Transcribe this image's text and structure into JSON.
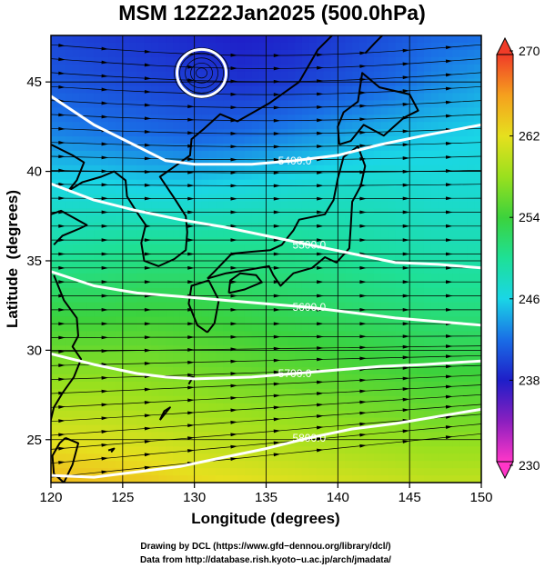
{
  "chart_data": {
    "type": "heatmap",
    "title": "MSM 12Z22Jan2025 (500.0hPa)",
    "xlabel": "Longitude (degrees)",
    "ylabel": "Latitude  (degrees)",
    "xlim": [
      120,
      150
    ],
    "ylim": [
      22.6,
      47.6
    ],
    "x_ticks": [
      "120",
      "125",
      "130",
      "135",
      "140",
      "145",
      "150"
    ],
    "y_ticks": [
      "25",
      "30",
      "35",
      "40",
      "45"
    ],
    "colorbar": {
      "range": [
        230,
        270
      ],
      "ticks": [
        "230",
        "238",
        "246",
        "254",
        "262",
        "270"
      ],
      "stops": [
        {
          "value": 230,
          "color": "#ff36c8"
        },
        {
          "value": 234,
          "color": "#8a1fbf"
        },
        {
          "value": 238,
          "color": "#1e1ec8"
        },
        {
          "value": 242,
          "color": "#1a6ee6"
        },
        {
          "value": 246,
          "color": "#1ad6e6"
        },
        {
          "value": 250,
          "color": "#1ee096"
        },
        {
          "value": 254,
          "color": "#3cd23c"
        },
        {
          "value": 258,
          "color": "#9ae01e"
        },
        {
          "value": 262,
          "color": "#e6e01e"
        },
        {
          "value": 266,
          "color": "#f5a01e"
        },
        {
          "value": 270,
          "color": "#f03c28"
        }
      ]
    },
    "temperature_field": [
      {
        "lat": 47.6,
        "values": [
          240,
          239.5,
          239,
          238.5,
          238,
          238.5,
          239.5,
          240.5,
          241.5,
          242
        ]
      },
      {
        "lat": 45,
        "values": [
          241,
          240.5,
          240,
          239.5,
          239,
          239.5,
          240.5,
          241.5,
          243,
          244
        ]
      },
      {
        "lat": 42,
        "values": [
          243,
          242.5,
          242,
          241.5,
          242,
          243,
          244,
          245,
          245.5,
          246
        ]
      },
      {
        "lat": 39,
        "values": [
          246.5,
          246.5,
          246,
          246,
          246.5,
          247,
          247.5,
          247.5,
          247,
          247
        ]
      },
      {
        "lat": 36,
        "values": [
          249,
          249.5,
          250,
          250,
          250,
          250,
          249.5,
          249,
          248.5,
          248.5
        ]
      },
      {
        "lat": 33,
        "values": [
          252.5,
          252.5,
          253,
          253,
          252.5,
          252,
          251.5,
          251,
          250.5,
          250.5
        ]
      },
      {
        "lat": 30,
        "values": [
          256,
          256,
          256,
          255.5,
          255,
          254.5,
          254,
          253.5,
          253,
          253
        ]
      },
      {
        "lat": 27,
        "values": [
          259,
          259,
          258.5,
          258,
          257.5,
          257,
          256.5,
          256,
          255.5,
          255.5
        ]
      },
      {
        "lat": 24,
        "values": [
          263,
          262.5,
          262,
          261,
          260.5,
          260,
          259.5,
          259,
          258.5,
          258.5
        ]
      },
      {
        "lat": 22.6,
        "values": [
          264.5,
          264,
          263.5,
          262.5,
          262,
          261.5,
          261,
          260.5,
          260,
          260
        ]
      }
    ],
    "contours": [
      {
        "label": "5400.0",
        "points": [
          [
            120,
            44.2
          ],
          [
            123,
            42.6
          ],
          [
            126,
            41.4
          ],
          [
            128,
            40.6
          ],
          [
            130,
            40.4
          ],
          [
            134,
            40.4
          ],
          [
            137,
            40.6
          ],
          [
            140,
            40.9
          ],
          [
            143,
            41.5
          ],
          [
            146,
            42.0
          ],
          [
            150,
            42.6
          ]
        ]
      },
      {
        "label": "5500.0",
        "points": [
          [
            120,
            39.3
          ],
          [
            123,
            38.4
          ],
          [
            126,
            37.8
          ],
          [
            129,
            37.3
          ],
          [
            132,
            36.9
          ],
          [
            135,
            36.4
          ],
          [
            138,
            35.9
          ],
          [
            141,
            35.4
          ],
          [
            144,
            34.9
          ],
          [
            147,
            34.8
          ],
          [
            150,
            34.6
          ]
        ]
      },
      {
        "label": "5600.0",
        "points": [
          [
            120,
            34.4
          ],
          [
            123,
            33.6
          ],
          [
            126,
            33.2
          ],
          [
            129,
            33.0
          ],
          [
            132,
            32.8
          ],
          [
            135,
            32.6
          ],
          [
            138,
            32.4
          ],
          [
            141,
            32.1
          ],
          [
            144,
            31.8
          ],
          [
            147,
            31.6
          ],
          [
            150,
            31.4
          ]
        ]
      },
      {
        "label": "5700.0",
        "points": [
          [
            120,
            29.8
          ],
          [
            123,
            29.2
          ],
          [
            126,
            28.7
          ],
          [
            128,
            28.5
          ],
          [
            130,
            28.4
          ],
          [
            134,
            28.5
          ],
          [
            137,
            28.7
          ],
          [
            140,
            28.9
          ],
          [
            143,
            29.1
          ],
          [
            146,
            29.2
          ],
          [
            150,
            29.4
          ]
        ]
      },
      {
        "label": "5800.0",
        "points": [
          [
            120,
            23.0
          ],
          [
            123,
            22.9
          ],
          [
            126,
            23.2
          ],
          [
            129,
            23.5
          ],
          [
            132,
            24.0
          ],
          [
            135,
            24.5
          ],
          [
            138,
            25.1
          ],
          [
            141,
            25.6
          ],
          [
            144,
            25.9
          ],
          [
            147,
            26.3
          ],
          [
            150,
            26.7
          ]
        ]
      }
    ],
    "low_center": {
      "lon": 130.5,
      "lat": 45.5
    }
  },
  "credits": {
    "line1": "Drawing by DCL (https://www.gfd−dennou.org/library/dcl/)",
    "line2": "Data from http://database.rish.kyoto−u.ac.jp/arch/jmadata/"
  }
}
